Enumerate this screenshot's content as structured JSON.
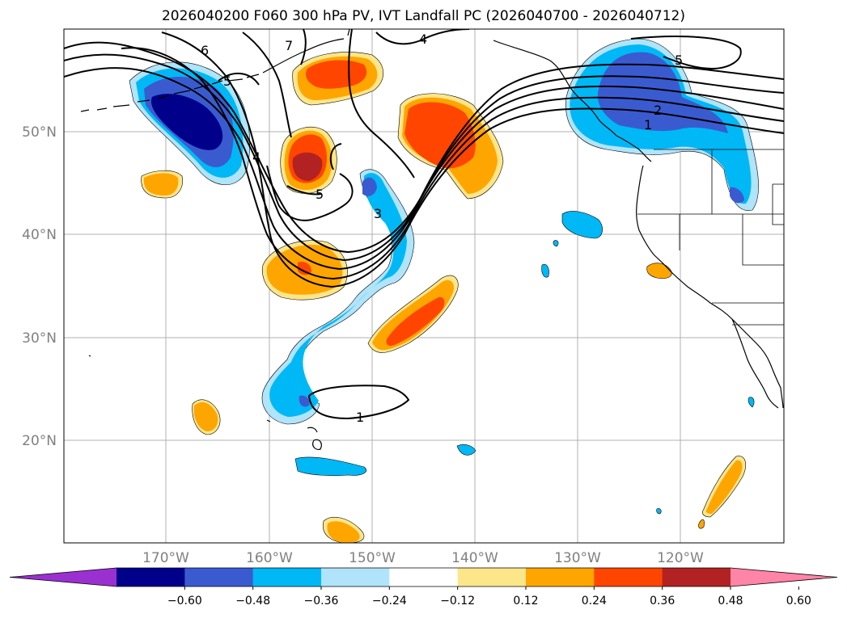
{
  "title": "2026040200 F060 300 hPa PV, IVT Landfall PC (2026040700 - 2026040712)",
  "lat_labels": [
    "50°N",
    "40°N",
    "30°N",
    "20°N"
  ],
  "lon_labels": [
    "170°W",
    "160°W",
    "150°W",
    "140°W",
    "130°W",
    "120°W"
  ],
  "colorbar": {
    "ticks": [
      "−0.60",
      "−0.48",
      "−0.36",
      "−0.24",
      "−0.12",
      "0.12",
      "0.24",
      "0.36",
      "0.48",
      "0.60"
    ],
    "colors": [
      "#9b30d0",
      "#00008b",
      "#3a5bd0",
      "#00b8f5",
      "#b0e4fb",
      "#ffffff",
      "#fde68a",
      "#ffa500",
      "#ff4500",
      "#b22222",
      "#ff85a8"
    ]
  },
  "contour_labels": [
    "6",
    "7",
    "4",
    "5",
    "4",
    "5",
    "3",
    "2",
    "1",
    "5",
    "1"
  ],
  "colors": {
    "axis_text": "#808080",
    "grid": "#b0b0b0"
  }
}
